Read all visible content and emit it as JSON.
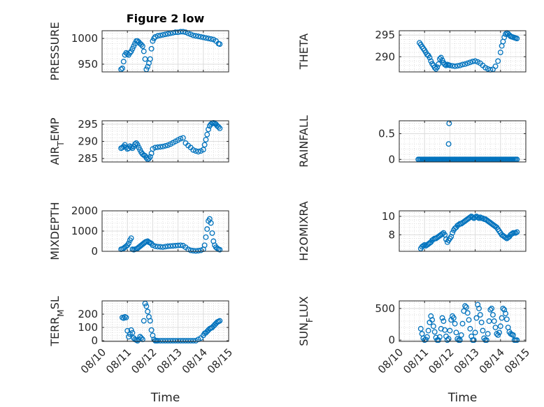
{
  "figure": {
    "title": "Figure 2 low",
    "xlabel": "Time",
    "marker_color": "#0072bd"
  },
  "chart_data": [
    {
      "type": "scatter",
      "ylabel": "PRESSURE",
      "xlim": [
        0,
        5
      ],
      "ylim": [
        935,
        1015
      ],
      "yticks": [
        950,
        1000
      ],
      "ytick_labels": [
        "950",
        "1000"
      ],
      "xticks": [
        0,
        1,
        2,
        3,
        4,
        5
      ],
      "xtick_labels": [
        "08/10",
        "08/11",
        "08/12",
        "08/13",
        "08/14",
        "08/15"
      ],
      "show_xticklabels": false,
      "x": [
        0.75,
        0.8,
        0.85,
        0.9,
        0.95,
        1.0,
        1.05,
        1.1,
        1.15,
        1.2,
        1.25,
        1.3,
        1.35,
        1.4,
        1.45,
        1.5,
        1.55,
        1.6,
        1.65,
        1.7,
        1.75,
        1.8,
        1.85,
        1.9,
        1.95,
        2.0,
        2.05,
        2.1,
        2.2,
        2.3,
        2.4,
        2.5,
        2.6,
        2.7,
        2.8,
        2.9,
        3.0,
        3.1,
        3.2,
        3.3,
        3.4,
        3.5,
        3.6,
        3.7,
        3.8,
        3.9,
        4.0,
        4.1,
        4.2,
        4.3,
        4.4,
        4.5,
        4.6,
        4.65
      ],
      "y": [
        940,
        942,
        955,
        968,
        972,
        970,
        968,
        972,
        975,
        980,
        985,
        990,
        995,
        995,
        993,
        990,
        988,
        985,
        975,
        960,
        940,
        945,
        952,
        960,
        980,
        995,
        1000,
        1003,
        1005,
        1006,
        1007,
        1008,
        1009,
        1010,
        1011,
        1012,
        1012,
        1013,
        1013,
        1012,
        1010,
        1008,
        1006,
        1005,
        1004,
        1003,
        1002,
        1001,
        1000,
        999,
        998,
        995,
        990,
        989
      ]
    },
    {
      "type": "scatter",
      "ylabel": "THETA",
      "xlim": [
        0,
        5
      ],
      "ylim": [
        286.5,
        296
      ],
      "yticks": [
        290,
        295
      ],
      "ytick_labels": [
        "290",
        "295"
      ],
      "xticks": [
        0,
        1,
        2,
        3,
        4,
        5
      ],
      "xtick_labels": [
        "08/10",
        "08/11",
        "08/12",
        "08/13",
        "08/14",
        "08/15"
      ],
      "show_xticklabels": false,
      "x": [
        0.8,
        0.85,
        0.9,
        0.95,
        1.0,
        1.05,
        1.1,
        1.15,
        1.2,
        1.25,
        1.3,
        1.35,
        1.4,
        1.45,
        1.5,
        1.55,
        1.6,
        1.65,
        1.7,
        1.75,
        1.8,
        1.85,
        1.9,
        1.95,
        2.0,
        2.1,
        2.2,
        2.3,
        2.4,
        2.5,
        2.6,
        2.7,
        2.8,
        2.9,
        3.0,
        3.1,
        3.2,
        3.3,
        3.4,
        3.5,
        3.6,
        3.7,
        3.8,
        3.9,
        4.0,
        4.05,
        4.1,
        4.15,
        4.2,
        4.25,
        4.3,
        4.35,
        4.4,
        4.45,
        4.5,
        4.55,
        4.6,
        4.65
      ],
      "y": [
        293.2,
        292.8,
        292.3,
        291.9,
        291.5,
        291,
        290.5,
        290.3,
        289.8,
        289,
        288.4,
        288,
        287.5,
        287.2,
        287.6,
        288.3,
        289.5,
        289.8,
        289.2,
        288.6,
        288.2,
        288,
        288.2,
        288.1,
        288,
        287.9,
        287.8,
        287.9,
        288,
        288.2,
        288.3,
        288.5,
        288.7,
        288.9,
        289,
        288.8,
        288.5,
        288,
        287.5,
        287.2,
        287,
        287.1,
        287.8,
        289,
        291,
        292.5,
        293.5,
        294.5,
        295.2,
        295.5,
        295.3,
        295,
        294.7,
        294.6,
        294.5,
        294.4,
        294.3,
        294.2
      ]
    },
    {
      "type": "scatter",
      "ylabel": "AIR_TEMP",
      "xlim": [
        0,
        5
      ],
      "ylim": [
        284,
        296
      ],
      "yticks": [
        285,
        290,
        295
      ],
      "ytick_labels": [
        "285",
        "290",
        "295"
      ],
      "xticks": [
        0,
        1,
        2,
        3,
        4,
        5
      ],
      "xtick_labels": [
        "08/10",
        "08/11",
        "08/12",
        "08/13",
        "08/14",
        "08/15"
      ],
      "show_xticklabels": false,
      "x": [
        0.75,
        0.8,
        0.85,
        0.9,
        0.95,
        1.0,
        1.05,
        1.1,
        1.15,
        1.2,
        1.25,
        1.3,
        1.35,
        1.4,
        1.45,
        1.5,
        1.55,
        1.6,
        1.65,
        1.7,
        1.75,
        1.8,
        1.85,
        1.9,
        1.95,
        2.0,
        2.1,
        2.2,
        2.3,
        2.4,
        2.5,
        2.6,
        2.7,
        2.8,
        2.9,
        3.0,
        3.1,
        3.2,
        3.3,
        3.4,
        3.5,
        3.6,
        3.7,
        3.8,
        3.9,
        4.0,
        4.05,
        4.1,
        4.15,
        4.2,
        4.25,
        4.3,
        4.35,
        4.4,
        4.45,
        4.5,
        4.55,
        4.6,
        4.65
      ],
      "y": [
        288,
        288.2,
        288.5,
        289,
        288.3,
        287.8,
        288,
        288.6,
        288.3,
        288,
        288.5,
        289.2,
        289.5,
        289,
        288.2,
        287.5,
        286.8,
        286.3,
        286,
        285.8,
        285.2,
        284.8,
        285,
        285.5,
        286.5,
        287.8,
        288.2,
        288.3,
        288.4,
        288.5,
        288.7,
        288.9,
        289.2,
        289.6,
        290,
        290.4,
        290.8,
        291,
        289.5,
        288.8,
        288.2,
        287.5,
        287.2,
        287,
        287.2,
        287.6,
        289,
        290.5,
        292,
        293.5,
        294.5,
        295,
        295.3,
        295.4,
        295.2,
        295,
        294.5,
        294.2,
        293.8
      ]
    },
    {
      "type": "scatter",
      "ylabel": "RAINFALL",
      "xlim": [
        0,
        5
      ],
      "ylim": [
        -0.05,
        0.75
      ],
      "yticks": [
        0,
        0.5
      ],
      "ytick_labels": [
        "0",
        "0.5"
      ],
      "xticks": [
        0,
        1,
        2,
        3,
        4,
        5
      ],
      "xtick_labels": [
        "08/10",
        "08/11",
        "08/12",
        "08/13",
        "08/14",
        "08/15"
      ],
      "show_xticklabels": false,
      "x": [
        0.75,
        0.8,
        0.85,
        0.9,
        0.95,
        1.0,
        1.05,
        1.1,
        1.15,
        1.2,
        1.25,
        1.3,
        1.35,
        1.4,
        1.45,
        1.5,
        1.55,
        1.6,
        1.65,
        1.7,
        1.75,
        1.8,
        1.85,
        1.9,
        1.95,
        2.0,
        2.05,
        2.1,
        2.15,
        2.2,
        2.25,
        2.3,
        2.35,
        2.4,
        2.45,
        2.5,
        2.55,
        2.6,
        2.65,
        2.7,
        2.75,
        2.8,
        2.85,
        2.9,
        2.95,
        3.0,
        3.05,
        3.1,
        3.15,
        3.2,
        3.25,
        3.3,
        3.35,
        3.4,
        3.45,
        3.5,
        3.55,
        3.6,
        3.65,
        3.7,
        3.75,
        3.8,
        3.85,
        3.9,
        3.95,
        4.0,
        4.05,
        4.1,
        4.15,
        4.2,
        4.25,
        4.3,
        4.35,
        4.4,
        4.45,
        4.5,
        4.55,
        4.6,
        4.65,
        1.95,
        1.97
      ],
      "y": [
        0,
        0,
        0,
        0,
        0,
        0,
        0,
        0,
        0,
        0,
        0,
        0,
        0,
        0,
        0,
        0,
        0,
        0,
        0,
        0,
        0,
        0,
        0,
        0,
        0,
        0,
        0,
        0,
        0,
        0,
        0,
        0,
        0,
        0,
        0,
        0,
        0,
        0,
        0,
        0,
        0,
        0,
        0,
        0,
        0,
        0,
        0,
        0,
        0,
        0,
        0,
        0,
        0,
        0,
        0,
        0,
        0,
        0,
        0,
        0,
        0,
        0,
        0,
        0,
        0,
        0,
        0,
        0,
        0,
        0,
        0,
        0,
        0,
        0,
        0,
        0,
        0,
        0,
        0,
        0.3,
        0.7
      ]
    },
    {
      "type": "scatter",
      "ylabel": "MIXDEPTH",
      "xlim": [
        0,
        5
      ],
      "ylim": [
        0,
        2000
      ],
      "yticks": [
        0,
        1000,
        2000
      ],
      "ytick_labels": [
        "0",
        "1000",
        "2000"
      ],
      "xticks": [
        0,
        1,
        2,
        3,
        4,
        5
      ],
      "xtick_labels": [
        "08/10",
        "08/11",
        "08/12",
        "08/13",
        "08/14",
        "08/15"
      ],
      "show_xticklabels": false,
      "x": [
        0.75,
        0.8,
        0.85,
        0.9,
        0.95,
        1.0,
        1.05,
        1.1,
        1.15,
        1.2,
        1.25,
        1.3,
        1.35,
        1.4,
        1.45,
        1.5,
        1.55,
        1.6,
        1.65,
        1.7,
        1.75,
        1.8,
        1.85,
        1.9,
        1.95,
        2.0,
        2.1,
        2.2,
        2.3,
        2.4,
        2.5,
        2.6,
        2.7,
        2.8,
        2.9,
        3.0,
        3.1,
        3.2,
        3.3,
        3.4,
        3.5,
        3.6,
        3.7,
        3.8,
        3.9,
        4.0,
        4.05,
        4.1,
        4.15,
        4.2,
        4.25,
        4.3,
        4.35,
        4.4,
        4.45,
        4.5,
        4.55,
        4.6,
        4.65
      ],
      "y": [
        100,
        120,
        150,
        200,
        250,
        300,
        400,
        550,
        650,
        100,
        80,
        100,
        120,
        150,
        200,
        250,
        300,
        350,
        400,
        450,
        480,
        500,
        450,
        420,
        380,
        300,
        250,
        230,
        220,
        210,
        230,
        250,
        260,
        270,
        280,
        290,
        300,
        280,
        200,
        100,
        50,
        30,
        20,
        30,
        50,
        100,
        300,
        700,
        1100,
        1500,
        1600,
        1400,
        900,
        500,
        300,
        200,
        150,
        100,
        80
      ]
    },
    {
      "type": "scatter",
      "ylabel": "H2OMIXRA",
      "xlim": [
        0,
        5
      ],
      "ylim": [
        6.2,
        10.6
      ],
      "yticks": [
        8,
        10
      ],
      "ytick_labels": [
        "8",
        "10"
      ],
      "xticks": [
        0,
        1,
        2,
        3,
        4,
        5
      ],
      "xtick_labels": [
        "08/10",
        "08/11",
        "08/12",
        "08/13",
        "08/14",
        "08/15"
      ],
      "show_xticklabels": false,
      "x": [
        0.85,
        0.9,
        0.95,
        1.0,
        1.05,
        1.1,
        1.15,
        1.2,
        1.25,
        1.3,
        1.35,
        1.4,
        1.45,
        1.5,
        1.55,
        1.6,
        1.65,
        1.7,
        1.75,
        1.8,
        1.85,
        1.9,
        1.95,
        2.0,
        2.05,
        2.1,
        2.15,
        2.2,
        2.25,
        2.3,
        2.35,
        2.4,
        2.45,
        2.5,
        2.55,
        2.6,
        2.65,
        2.7,
        2.75,
        2.8,
        2.85,
        2.9,
        2.95,
        3.0,
        3.05,
        3.1,
        3.15,
        3.2,
        3.25,
        3.3,
        3.35,
        3.4,
        3.45,
        3.5,
        3.55,
        3.6,
        3.65,
        3.7,
        3.75,
        3.8,
        3.85,
        3.9,
        3.95,
        4.0,
        4.05,
        4.1,
        4.15,
        4.2,
        4.25,
        4.3,
        4.35,
        4.4,
        4.45,
        4.5,
        4.55,
        4.6,
        4.65
      ],
      "y": [
        6.5,
        6.7,
        6.8,
        6.9,
        6.8,
        6.9,
        7.0,
        7.1,
        7.2,
        7.4,
        7.5,
        7.6,
        7.6,
        7.7,
        7.8,
        7.9,
        8.0,
        8.1,
        8.2,
        8.0,
        7.5,
        7.2,
        7.4,
        7.6,
        7.8,
        8.2,
        8.5,
        8.7,
        8.8,
        9.0,
        9.1,
        9.2,
        9.2,
        9.3,
        9.4,
        9.5,
        9.6,
        9.7,
        9.8,
        9.9,
        10.0,
        9.9,
        9.8,
        9.9,
        10.0,
        9.9,
        9.8,
        9.9,
        9.8,
        9.8,
        9.7,
        9.7,
        9.6,
        9.5,
        9.4,
        9.3,
        9.2,
        9.1,
        9.0,
        8.9,
        8.8,
        8.6,
        8.4,
        8.2,
        8.0,
        7.9,
        7.8,
        7.7,
        7.6,
        7.7,
        7.8,
        8.0,
        8.1,
        8.2,
        8.2,
        8.2,
        8.3
      ]
    },
    {
      "type": "scatter",
      "ylabel": "TERR_MSL",
      "xlim": [
        0,
        5
      ],
      "ylim": [
        -5,
        300
      ],
      "yticks": [
        0,
        100,
        200
      ],
      "ytick_labels": [
        "0",
        "100",
        "200"
      ],
      "xticks": [
        0,
        1,
        2,
        3,
        4,
        5
      ],
      "xtick_labels": [
        "08/10",
        "08/11",
        "08/12",
        "08/13",
        "08/14",
        "08/15"
      ],
      "show_xticklabels": true,
      "x": [
        0.8,
        0.85,
        0.9,
        0.95,
        1.0,
        1.05,
        1.1,
        1.15,
        1.2,
        1.25,
        1.3,
        1.35,
        1.4,
        1.45,
        1.5,
        1.55,
        1.6,
        1.65,
        1.7,
        1.75,
        1.8,
        1.85,
        1.9,
        1.95,
        2.0,
        2.05,
        2.1,
        2.15,
        2.2,
        2.3,
        2.4,
        2.5,
        2.6,
        2.7,
        2.8,
        2.9,
        3.0,
        3.1,
        3.2,
        3.3,
        3.4,
        3.5,
        3.6,
        3.7,
        3.8,
        3.9,
        4.0,
        4.05,
        4.1,
        4.15,
        4.2,
        4.25,
        4.3,
        4.35,
        4.4,
        4.45,
        4.5,
        4.55,
        4.6,
        4.65
      ],
      "y": [
        175,
        170,
        180,
        175,
        75,
        30,
        50,
        80,
        60,
        20,
        10,
        5,
        0,
        10,
        30,
        20,
        10,
        150,
        280,
        260,
        220,
        180,
        150,
        80,
        40,
        10,
        0,
        0,
        0,
        0,
        0,
        0,
        0,
        0,
        0,
        0,
        0,
        0,
        0,
        0,
        0,
        0,
        0,
        0,
        10,
        20,
        40,
        55,
        60,
        70,
        80,
        90,
        95,
        100,
        110,
        120,
        130,
        140,
        145,
        150
      ]
    },
    {
      "type": "scatter",
      "ylabel": "SUN_FLUX",
      "xlim": [
        0,
        5
      ],
      "ylim": [
        -20,
        620
      ],
      "yticks": [
        0,
        500
      ],
      "ytick_labels": [
        "0",
        "500"
      ],
      "xticks": [
        0,
        1,
        2,
        3,
        4,
        5
      ],
      "xtick_labels": [
        "08/10",
        "08/11",
        "08/12",
        "08/13",
        "08/14",
        "08/15"
      ],
      "show_xticklabels": true,
      "x": [
        0.85,
        0.9,
        0.95,
        1.0,
        1.05,
        1.1,
        1.15,
        1.2,
        1.25,
        1.3,
        1.35,
        1.4,
        1.45,
        1.5,
        1.55,
        1.6,
        1.65,
        1.7,
        1.75,
        1.8,
        1.85,
        1.9,
        1.95,
        2.0,
        2.05,
        2.1,
        2.15,
        2.2,
        2.25,
        2.3,
        2.35,
        2.4,
        2.45,
        2.5,
        2.55,
        2.6,
        2.65,
        2.7,
        2.75,
        2.8,
        2.85,
        2.9,
        2.95,
        3.0,
        3.05,
        3.1,
        3.15,
        3.2,
        3.25,
        3.3,
        3.35,
        3.4,
        3.45,
        3.5,
        3.55,
        3.6,
        3.65,
        3.7,
        3.75,
        3.8,
        3.85,
        3.9,
        3.95,
        4.0,
        4.05,
        4.1,
        4.15,
        4.2,
        4.25,
        4.3,
        4.35,
        4.4,
        4.45,
        4.5,
        4.55,
        4.6,
        4.65
      ],
      "y": [
        180,
        100,
        30,
        0,
        10,
        50,
        150,
        280,
        380,
        320,
        220,
        130,
        40,
        0,
        0,
        50,
        180,
        350,
        300,
        160,
        60,
        0,
        20,
        150,
        320,
        380,
        350,
        260,
        120,
        20,
        0,
        0,
        80,
        260,
        460,
        540,
        520,
        430,
        320,
        180,
        60,
        0,
        0,
        120,
        350,
        560,
        500,
        400,
        280,
        150,
        30,
        0,
        0,
        100,
        300,
        480,
        500,
        400,
        300,
        200,
        100,
        80,
        120,
        220,
        350,
        500,
        480,
        420,
        330,
        200,
        130,
        100,
        90,
        80,
        0,
        0,
        0
      ]
    }
  ]
}
